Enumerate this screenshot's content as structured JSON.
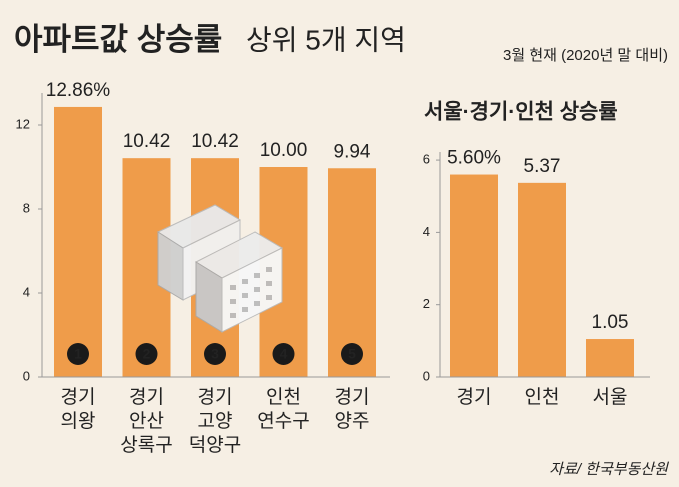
{
  "header": {
    "title_bold": "아파트값 상승률",
    "title_light": "상위 5개 지역",
    "subtitle": "3월 현재 (2020년 말 대비)"
  },
  "source": "자료/ 한국부동산원",
  "chart_data": [
    {
      "type": "bar",
      "categories": [
        [
          "경기",
          "의왕"
        ],
        [
          "경기",
          "안산",
          "상록구"
        ],
        [
          "경기",
          "고양",
          "덕양구"
        ],
        [
          "인천",
          "연수구"
        ],
        [
          "경기",
          "양주"
        ]
      ],
      "values": [
        12.86,
        10.42,
        10.42,
        10.0,
        9.94
      ],
      "value_labels": [
        "12.86%",
        "10.42",
        "10.42",
        "10.00",
        "9.94"
      ],
      "ranks": [
        1,
        2,
        3,
        4,
        5
      ],
      "color": "#ef9c4a",
      "ylim": [
        0,
        14
      ],
      "yticks": [
        0,
        4,
        8,
        12
      ]
    },
    {
      "type": "bar",
      "title": "서울·경기·인천 상승률",
      "categories": [
        [
          "경기"
        ],
        [
          "인천"
        ],
        [
          "서울"
        ]
      ],
      "values": [
        5.6,
        5.37,
        1.05
      ],
      "value_labels": [
        "5.60%",
        "5.37",
        "1.05"
      ],
      "color": "#ef9c4a",
      "ylim": [
        0,
        6.5
      ],
      "yticks": [
        0,
        2,
        4,
        6
      ]
    }
  ]
}
